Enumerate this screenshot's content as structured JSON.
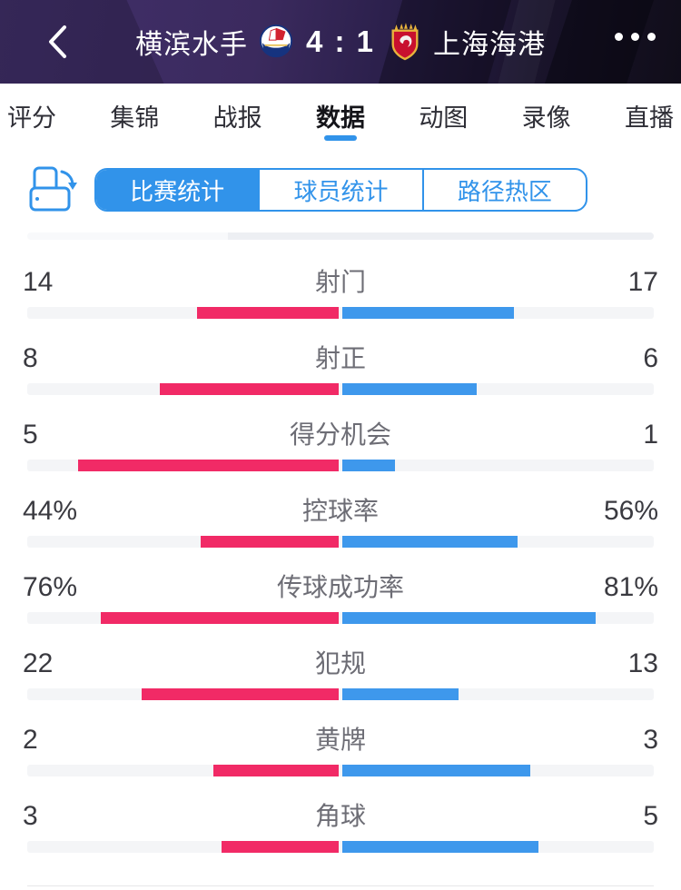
{
  "colors": {
    "accent_blue": "#3193ea",
    "bar_blue": "#3e98ec",
    "bar_pink": "#f12a66",
    "header_purple": "#3b2a5e",
    "track_gray": "#f4f5f7"
  },
  "header": {
    "home_team": "横滨水手",
    "score": "4 : 1",
    "away_team": "上海海港",
    "back_icon": "chevron-left",
    "more_icon": "three-dots"
  },
  "tabs": {
    "active_index": 3,
    "items": [
      {
        "label": "评分"
      },
      {
        "label": "集锦"
      },
      {
        "label": "战报"
      },
      {
        "label": "数据"
      },
      {
        "label": "动图"
      },
      {
        "label": "录像"
      },
      {
        "label": "直播"
      }
    ]
  },
  "subtabs": {
    "active_index": 0,
    "items": [
      {
        "label": "比赛统计"
      },
      {
        "label": "球员统计"
      },
      {
        "label": "路径热区"
      }
    ]
  },
  "stats": {
    "rows": [
      {
        "label": "射门",
        "left": "14",
        "right": "17"
      },
      {
        "label": "射正",
        "left": "8",
        "right": "6"
      },
      {
        "label": "得分机会",
        "left": "5",
        "right": "1"
      },
      {
        "label": "控球率",
        "left": "44%",
        "right": "56%"
      },
      {
        "label": "传球成功率",
        "left": "76%",
        "right": "81%"
      },
      {
        "label": "犯规",
        "left": "22",
        "right": "13"
      },
      {
        "label": "黄牌",
        "left": "2",
        "right": "3"
      },
      {
        "label": "角球",
        "left": "3",
        "right": "5"
      }
    ]
  },
  "chart_data": {
    "type": "bar",
    "title": "比赛统计",
    "categories": [
      "射门",
      "射正",
      "得分机会",
      "控球率",
      "传球成功率",
      "犯规",
      "黄牌",
      "角球"
    ],
    "series": [
      {
        "name": "横滨水手",
        "values": [
          14,
          8,
          5,
          "44%",
          "76%",
          22,
          2,
          3
        ]
      },
      {
        "name": "上海海港",
        "values": [
          17,
          6,
          1,
          "56%",
          "81%",
          13,
          3,
          5
        ]
      }
    ],
    "legend_position": "none",
    "grid": false
  }
}
